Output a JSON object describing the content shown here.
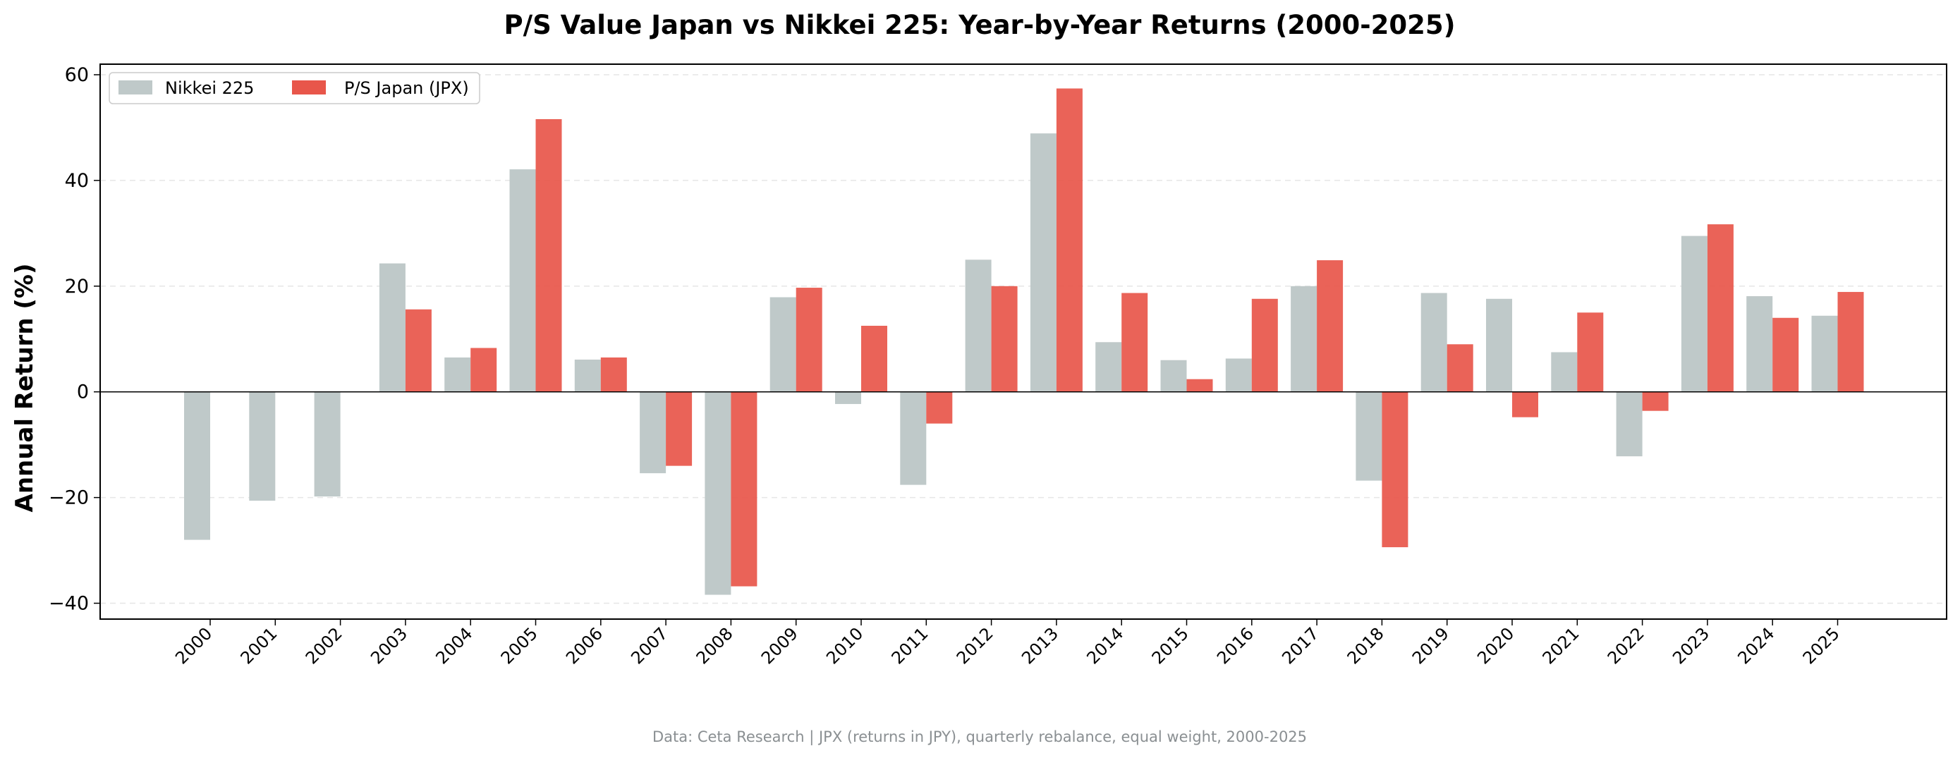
{
  "chart_data": {
    "type": "bar",
    "title": "P/S Value Japan vs Nikkei 225: Year-by-Year Returns (2000-2025)",
    "xlabel": "",
    "ylabel": "Annual Return (%)",
    "ylim": [
      -43,
      62
    ],
    "yticks": [
      -40,
      -20,
      0,
      20,
      40,
      60
    ],
    "ytick_labels": [
      "−40",
      "−20",
      "0",
      "20",
      "40",
      "60"
    ],
    "grid": "horizontal dashed",
    "legend_position": "top-left",
    "categories": [
      "2000",
      "2001",
      "2002",
      "2003",
      "2004",
      "2005",
      "2006",
      "2007",
      "2008",
      "2009",
      "2010",
      "2011",
      "2012",
      "2013",
      "2014",
      "2015",
      "2016",
      "2017",
      "2018",
      "2019",
      "2020",
      "2021",
      "2022",
      "2023",
      "2024",
      "2025"
    ],
    "series": [
      {
        "name": "Nikkei 225",
        "color": "#bfc9c9",
        "values": [
          -28.0,
          -20.6,
          -19.8,
          24.3,
          6.5,
          42.1,
          6.1,
          -15.4,
          -38.4,
          17.9,
          -2.3,
          -17.6,
          25.0,
          48.9,
          9.4,
          6.0,
          6.3,
          20.0,
          -16.8,
          18.7,
          17.6,
          7.5,
          -12.2,
          29.5,
          18.1,
          14.4
        ]
      },
      {
        "name": "P/S Japan (JPX)",
        "color": "#e8564a",
        "values": [
          null,
          null,
          null,
          15.6,
          8.3,
          51.6,
          6.5,
          -14.0,
          -36.8,
          19.7,
          12.5,
          -6.0,
          20.0,
          57.4,
          18.7,
          2.4,
          17.6,
          24.9,
          -29.4,
          9.0,
          -4.8,
          15.0,
          -3.6,
          31.7,
          14.0,
          18.9
        ]
      }
    ],
    "footnote": "Data: Ceta Research | JPX (returns in JPY), quarterly rebalance, equal weight, 2000-2025"
  }
}
